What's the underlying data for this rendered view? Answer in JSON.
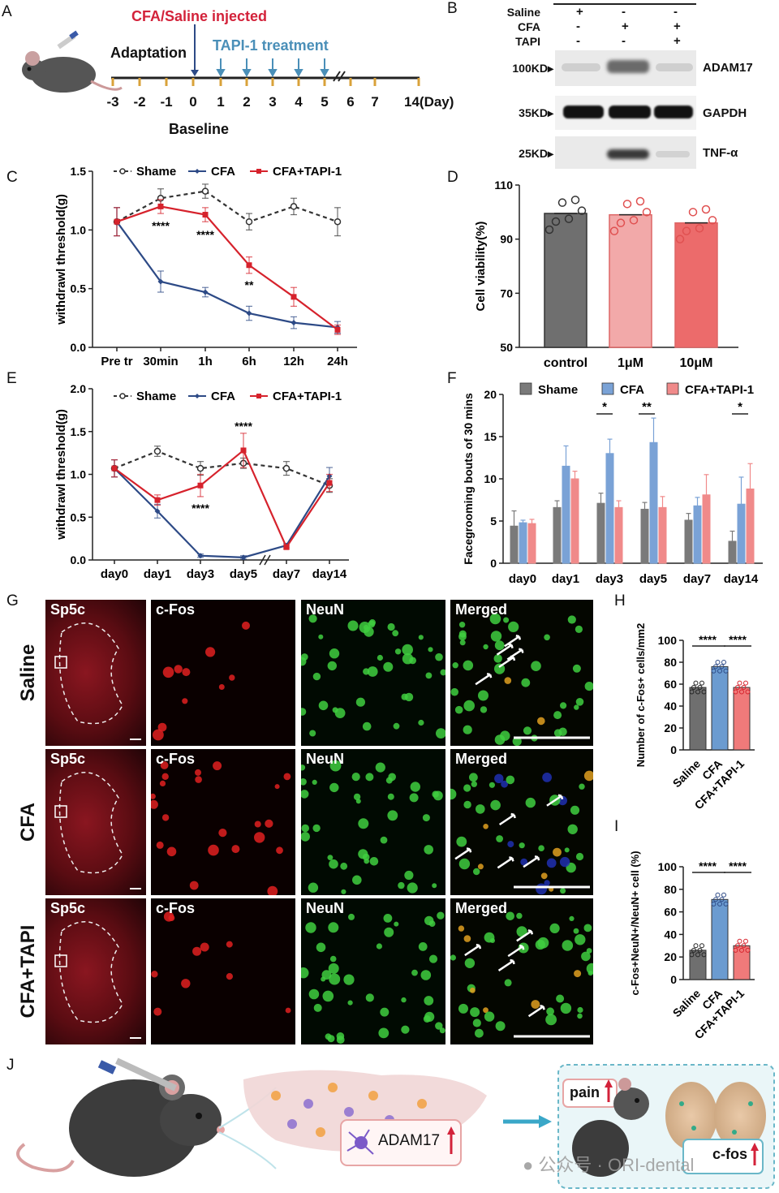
{
  "panel_letters": {
    "A": "A",
    "B": "B",
    "C": "C",
    "D": "D",
    "E": "E",
    "F": "F",
    "G": "G",
    "H": "H",
    "I": "I",
    "J": "J"
  },
  "panelA": {
    "injected_label": "CFA/Saline injected",
    "adaptation_label": "Adaptation",
    "treatment_label": "TAPI-1 treatment",
    "baseline_label": "Baseline",
    "ticks": [
      "-3",
      "-2",
      "-1",
      "0",
      "1",
      "2",
      "3",
      "4",
      "5",
      "6",
      "7",
      "14(Day)"
    ],
    "colors": {
      "injected": "#d3223a",
      "treatment": "#4a8fb8",
      "tick": "#d9a23a"
    }
  },
  "panelB": {
    "conditions": [
      "Saline",
      "CFA",
      "TAPI"
    ],
    "signs": [
      [
        "+",
        "-",
        "-"
      ],
      [
        "-",
        "+",
        "+"
      ],
      [
        "-",
        "-",
        "+"
      ]
    ],
    "markers": [
      "100KD",
      "35KD",
      "25KD"
    ],
    "proteins": [
      "ADAM17",
      "GAPDH",
      "TNF-α"
    ]
  },
  "chart_data": [
    {
      "panel": "C",
      "type": "line",
      "ylabel": "withdrawl threshold(g)",
      "categories": [
        "Pre tr",
        "30min",
        "1h",
        "6h",
        "12h",
        "24h"
      ],
      "ylim": [
        0,
        1.5
      ],
      "yticks": [
        "0.0",
        "0.5",
        "1.0",
        "1.5"
      ],
      "series": [
        {
          "name": "Shame",
          "color": "#333333",
          "values": [
            1.07,
            1.27,
            1.33,
            1.07,
            1.2,
            1.07
          ],
          "err": [
            0.12,
            0.08,
            0.06,
            0.07,
            0.07,
            0.12
          ]
        },
        {
          "name": "CFA",
          "color": "#2d4a86",
          "values": [
            1.07,
            0.56,
            0.47,
            0.29,
            0.21,
            0.17
          ],
          "err": [
            0.12,
            0.09,
            0.04,
            0.06,
            0.05,
            0.05
          ]
        },
        {
          "name": "CFA+TAPI-1",
          "color": "#d6222c",
          "values": [
            1.07,
            1.2,
            1.13,
            0.7,
            0.43,
            0.15
          ],
          "err": [
            0.12,
            0.06,
            0.06,
            0.07,
            0.08,
            0.04
          ]
        }
      ],
      "annotations": [
        "****",
        "****",
        "**"
      ]
    },
    {
      "panel": "D",
      "type": "bar",
      "ylabel": "Cell viability(%)",
      "categories": [
        "control",
        "1μM",
        "10μM"
      ],
      "values": [
        99.5,
        99,
        96
      ],
      "ylim": [
        50,
        110
      ],
      "yticks": [
        "50",
        "70",
        "90",
        "110"
      ],
      "colors": [
        "#6f6f6f",
        "#f2a9a9",
        "#ec6b6b"
      ]
    },
    {
      "panel": "E",
      "type": "line",
      "ylabel": "withdrawl threshold(g)",
      "categories": [
        "day0",
        "day1",
        "day3",
        "day5",
        "day7",
        "day14"
      ],
      "ylim": [
        0,
        2.0
      ],
      "yticks": [
        "0.0",
        "0.5",
        "1.0",
        "1.5",
        "2.0"
      ],
      "series": [
        {
          "name": "Shame",
          "color": "#333333",
          "values": [
            1.07,
            1.27,
            1.07,
            1.13,
            1.07,
            0.87
          ],
          "err": [
            0.1,
            0.06,
            0.08,
            0.06,
            0.08,
            0.08
          ]
        },
        {
          "name": "CFA",
          "color": "#2d4a86",
          "values": [
            1.07,
            0.57,
            0.05,
            0.03,
            0.17,
            0.98
          ],
          "err": [
            0.1,
            0.08,
            0.02,
            0.02,
            0.02,
            0.1
          ]
        },
        {
          "name": "CFA+TAPI-1",
          "color": "#d6222c",
          "values": [
            1.07,
            0.7,
            0.87,
            1.28,
            0.15,
            0.9
          ],
          "err": [
            0.1,
            0.06,
            0.13,
            0.2,
            0.02,
            0.1
          ]
        }
      ],
      "annotations": [
        "****",
        "****"
      ]
    },
    {
      "panel": "F",
      "type": "bar",
      "ylabel": "Facegrooming bouts of 30 mins",
      "categories": [
        "day0",
        "day1",
        "day3",
        "day5",
        "day7",
        "day14"
      ],
      "ylim": [
        0,
        20
      ],
      "yticks": [
        "0",
        "5",
        "10",
        "15",
        "20"
      ],
      "series": [
        {
          "name": "Shame",
          "color": "#7a7a7a",
          "values": [
            4.4,
            6.6,
            7.1,
            6.4,
            5.1,
            2.6
          ],
          "err": [
            1.8,
            0.8,
            1.2,
            0.8,
            0.8,
            1.2
          ]
        },
        {
          "name": "CFA",
          "color": "#7aa2d6",
          "values": [
            4.8,
            11.5,
            13.0,
            14.3,
            6.8,
            7.0
          ],
          "err": [
            0.3,
            2.4,
            1.7,
            2.9,
            1.0,
            3.2
          ]
        },
        {
          "name": "CFA+TAPI-1",
          "color": "#f08a8a",
          "values": [
            4.7,
            10.0,
            6.6,
            6.6,
            8.1,
            8.8
          ],
          "err": [
            0.5,
            0.9,
            0.8,
            1.3,
            2.4,
            3.0
          ]
        }
      ],
      "annotations": [
        "*",
        "**",
        "*"
      ]
    },
    {
      "panel": "H",
      "type": "bar",
      "ylabel": "Number of c-Fos+ cells/mm2",
      "categories": [
        "Saline",
        "CFA",
        "CFA+TAPI-1"
      ],
      "values": [
        57,
        76,
        57
      ],
      "ylim": [
        0,
        100
      ],
      "yticks": [
        "0",
        "20",
        "40",
        "60",
        "80",
        "100"
      ],
      "colors": [
        "#6f6f6f",
        "#6b9bd0",
        "#f07a7a"
      ],
      "annotations": [
        "****",
        "****"
      ]
    },
    {
      "panel": "I",
      "type": "bar",
      "ylabel": "c-Fos+NeuN+/NeuN+ cell (%)",
      "categories": [
        "Saline",
        "CFA",
        "CFA+TAPI-1"
      ],
      "values": [
        26,
        71,
        30
      ],
      "ylim": [
        0,
        100
      ],
      "yticks": [
        "0",
        "20",
        "40",
        "60",
        "80",
        "100"
      ],
      "colors": [
        "#6f6f6f",
        "#6b9bd0",
        "#f07a7a"
      ],
      "annotations": [
        "****",
        "****"
      ]
    }
  ],
  "panelG": {
    "rows": [
      "Saline",
      "CFA",
      "CFA+TAPI"
    ],
    "cols": [
      "Sp5c",
      "c-Fos",
      "NeuN",
      "Merged"
    ]
  },
  "panelJ": {
    "adam17": "ADAM17",
    "pain": "pain",
    "cfos": "c-fos"
  },
  "watermark": "公众号 · ORI-dental"
}
